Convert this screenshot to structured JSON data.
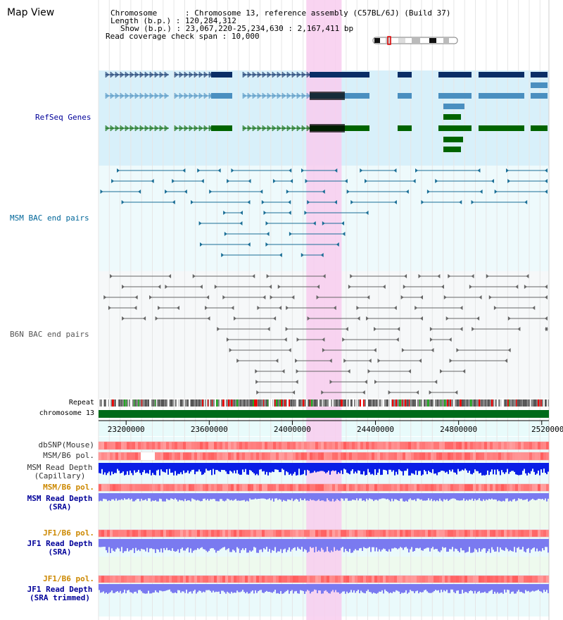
{
  "title": "Map View",
  "info": {
    "chromosome_label": "Chromosome",
    "chromosome_value": "Chromosome 13, reference assembly (C57BL/6J) (Build 37)",
    "length_label": "Length (b.p.)",
    "length_value": "120,284,312",
    "show_label": "Show (b.p.)",
    "show_value": "23,067,220-25,234,630 : 2,167,411 bp",
    "coverage_label": "Read coverage check span",
    "coverage_value": "10,000"
  },
  "range": {
    "start": 23067220,
    "end": 25234630
  },
  "highlight": {
    "start": 24067000,
    "end": 24237000
  },
  "axis": {
    "ticks": [
      {
        "pos": 23200000,
        "label": "23200000"
      },
      {
        "pos": 23600000,
        "label": "23600000"
      },
      {
        "pos": 24000000,
        "label": "24000000"
      },
      {
        "pos": 24400000,
        "label": "24400000"
      },
      {
        "pos": 24800000,
        "label": "24800000"
      },
      {
        "pos": 25200000,
        "label": "25200000"
      }
    ]
  },
  "tracks": {
    "refseq": "RefSeq Genes",
    "msm_bac": "MSM BAC end pairs",
    "b6n_bac": "B6N BAC end pairs",
    "repeat": "Repeat",
    "chromosome": "chromosome 13",
    "dbsnp": "dbSNP(Mouse)",
    "msm_b6_pol_1": "MSM/B6 pol.",
    "msm_depth_cap_1": "MSM Read Depth",
    "msm_depth_cap_2": "(Capillary)",
    "msm_b6_pol_2": "MSM/B6 pol.",
    "msm_depth_sra_1": "MSM Read Depth",
    "msm_depth_sra_2": "(SRA)",
    "jf1_b6_pol_1": "JF1/B6 pol.",
    "jf1_depth_sra_1": "JF1 Read Depth",
    "jf1_depth_sra_2": "(SRA)",
    "jf1_b6_pol_2": "JF1/B6 pol.",
    "jf1_depth_trim_1": "JF1 Read Depth",
    "jf1_depth_trim_2": "(SRA trimmed)"
  },
  "colors": {
    "refseq_dark": "#0b2e66",
    "refseq_mid": "#4a8fc0",
    "refseq_green": "#006400",
    "refseq_bg": "#d8f0fa",
    "msm_bac": "#1a6e96",
    "b6n_bac": "#666666",
    "highlight": "#f8ccee",
    "chromosome": "#006b1a",
    "depth_cap": "#0a1ee6",
    "depth_sra": "#7a7af0",
    "snp_red": "#ee3344",
    "label_blue": "#000099",
    "label_msm": "#006699",
    "label_orange": "#cc8800"
  }
}
